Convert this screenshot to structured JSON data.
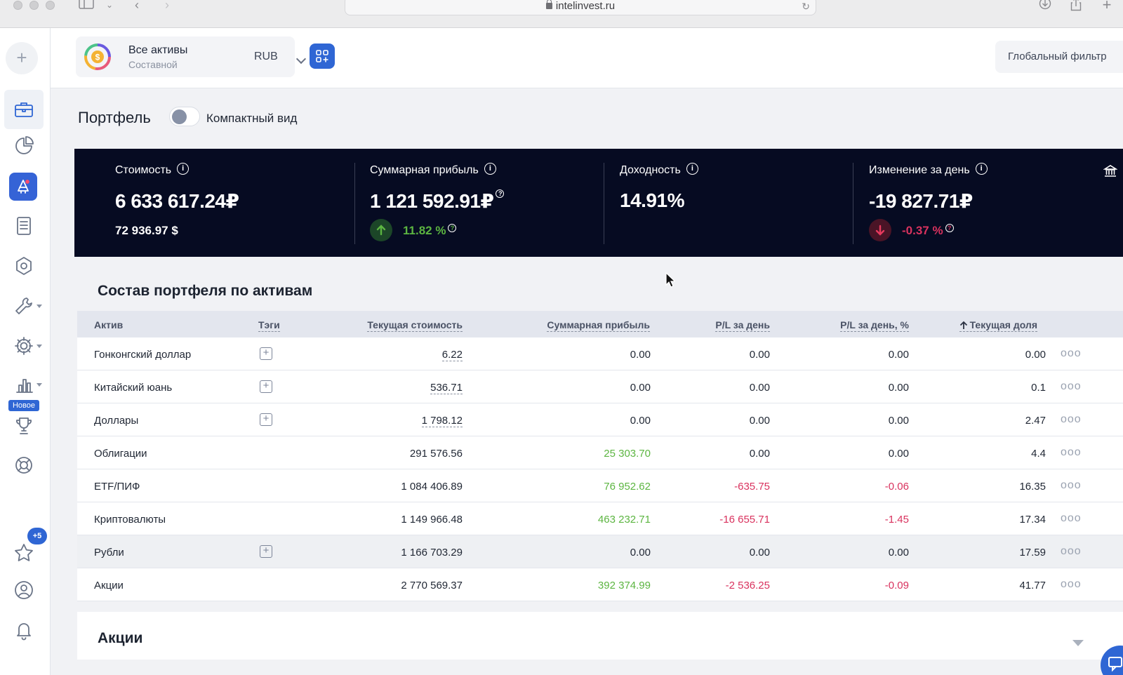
{
  "browser": {
    "url": "intelinvest.ru"
  },
  "header": {
    "portfolio_name": "Все активы",
    "portfolio_type": "Составной",
    "currency": "RUB",
    "global_filter": "Глобальный фильтр"
  },
  "sidebar": {
    "new_badge": "Новое",
    "favorites_count": "+5",
    "icons": [
      "plus-icon",
      "briefcase-icon",
      "pie-chart-icon",
      "promo-icon",
      "document-icon",
      "hexagon-icon",
      "wrench-icon",
      "settings-icon",
      "bar-chart-icon",
      "trophy-icon",
      "lifebuoy-icon",
      "star-icon",
      "user-icon",
      "bell-icon"
    ]
  },
  "page": {
    "title": "Портфель",
    "compact_toggle_label": "Компактный вид",
    "compact_toggle_on": false
  },
  "stats": {
    "cost": {
      "label": "Стоимость",
      "value": "6 633 617.24₽",
      "sub": "72 936.97 $"
    },
    "profit": {
      "label": "Суммарная прибыль",
      "value": "1 121 592.91₽",
      "sub": "11.82 %"
    },
    "yield": {
      "label": "Доходность",
      "value": "14.91%"
    },
    "day_change": {
      "label": "Изменение за день",
      "value": "-19 827.71₽",
      "sub": "-0.37 %"
    },
    "colors": {
      "positive": "#5cb541",
      "negative": "#d9325e",
      "banner_bg": "#060b22"
    }
  },
  "assets_table": {
    "title": "Состав портфеля по активам",
    "columns": {
      "asset": "Актив",
      "tags": "Тэги",
      "current_value": "Текущая стоимость",
      "total_profit": "Суммарная прибыль",
      "pl_day": "P/L за день",
      "pl_day_pct": "P/L за день, %",
      "current_share": "Текущая доля"
    },
    "rows": [
      {
        "asset": "Гонконгский доллар",
        "has_tag_button": true,
        "value": "6.22",
        "profit": "0.00",
        "pl": "0.00",
        "pl_pct": "0.00",
        "share": "0.00"
      },
      {
        "asset": "Китайский юань",
        "has_tag_button": true,
        "value": "536.71",
        "profit": "0.00",
        "pl": "0.00",
        "pl_pct": "0.00",
        "share": "0.1"
      },
      {
        "asset": "Доллары",
        "has_tag_button": true,
        "value": "1 798.12",
        "profit": "0.00",
        "pl": "0.00",
        "pl_pct": "0.00",
        "share": "2.47"
      },
      {
        "asset": "Облигации",
        "has_tag_button": false,
        "value": "291 576.56",
        "profit": "25 303.70",
        "pl": "0.00",
        "pl_pct": "0.00",
        "share": "4.4"
      },
      {
        "asset": "ETF/ПИФ",
        "has_tag_button": false,
        "value": "1 084 406.89",
        "profit": "76 952.62",
        "pl": "-635.75",
        "pl_pct": "-0.06",
        "share": "16.35"
      },
      {
        "asset": "Криптовалюты",
        "has_tag_button": false,
        "value": "1 149 966.48",
        "profit": "463 232.71",
        "pl": "-16 655.71",
        "pl_pct": "-1.45",
        "share": "17.34"
      },
      {
        "asset": "Рубли",
        "has_tag_button": true,
        "value": "1 166 703.29",
        "profit": "0.00",
        "pl": "0.00",
        "pl_pct": "0.00",
        "share": "17.59"
      },
      {
        "asset": "Акции",
        "has_tag_button": false,
        "value": "2 770 569.37",
        "profit": "392 374.99",
        "pl": "-2 536.25",
        "pl_pct": "-0.09",
        "share": "41.77"
      }
    ]
  },
  "stocks_section": {
    "title": "Акции"
  }
}
